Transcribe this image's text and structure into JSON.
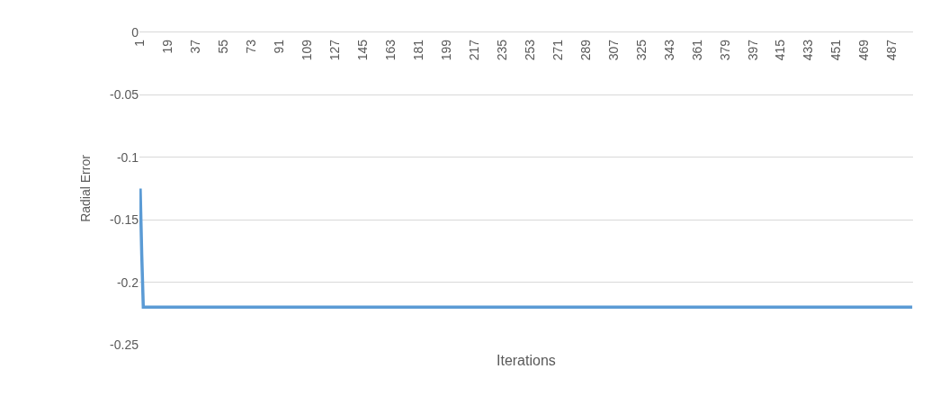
{
  "chart_data": {
    "type": "line",
    "xlabel": "Iterations",
    "ylabel": "Radial Error",
    "x": [
      1,
      2,
      3,
      500
    ],
    "series": [
      {
        "color": "#5b9bd5",
        "values": [
          -0.125,
          -0.178,
          -0.22,
          -0.22
        ]
      }
    ],
    "xlim": [
      0.5,
      500.5
    ],
    "xticks": [
      1,
      19,
      37,
      55,
      73,
      91,
      109,
      127,
      145,
      163,
      181,
      199,
      217,
      235,
      253,
      271,
      289,
      307,
      325,
      343,
      361,
      379,
      397,
      415,
      433,
      451,
      469,
      487
    ],
    "ylim": [
      -0.25,
      0
    ],
    "yticks": [
      0,
      -0.05,
      -0.1,
      -0.15,
      -0.2,
      -0.25
    ],
    "grid": "y",
    "marker": "none",
    "line_style": "solid"
  }
}
